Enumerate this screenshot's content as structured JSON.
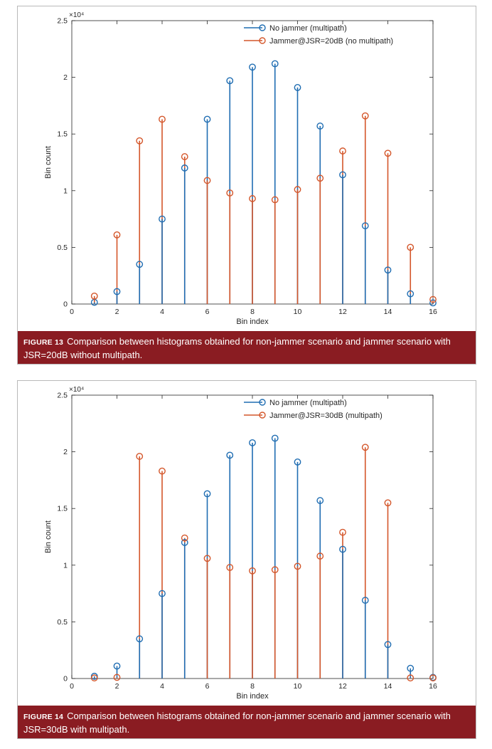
{
  "figures": [
    {
      "caption": {
        "label": "FIGURE 13",
        "text": "Comparison between histograms obtained for non-jammer scenario and jammer scenario with JSR=20dB without multipath."
      },
      "chart_data": {
        "type": "stem",
        "xlabel": "Bin index",
        "ylabel": "Bin count",
        "exponent_label": "×10⁴",
        "xlim": [
          0,
          16
        ],
        "ylim": [
          0,
          25000
        ],
        "x_ticks": [
          0,
          2,
          4,
          6,
          8,
          10,
          12,
          14,
          16
        ],
        "y_ticks": [
          0,
          5000,
          10000,
          15000,
          20000,
          25000
        ],
        "y_tick_labels": [
          "0",
          "0.5",
          "1",
          "1.5",
          "2",
          "2.5"
        ],
        "legend_position": "top-right",
        "x": [
          1,
          2,
          3,
          4,
          5,
          6,
          7,
          8,
          9,
          10,
          11,
          12,
          13,
          14,
          15,
          16
        ],
        "series": [
          {
            "name": "No jammer (multipath)",
            "color": "#1f6db2",
            "values": [
              150,
              1100,
              3500,
              7500,
              12000,
              16300,
              19700,
              20900,
              21200,
              19100,
              15700,
              11400,
              6900,
              3000,
              900,
              100
            ]
          },
          {
            "name": "Jammer@JSR=20dB (no multipath)",
            "color": "#d4562a",
            "values": [
              700,
              6100,
              14400,
              16300,
              13000,
              10900,
              9800,
              9300,
              9200,
              10100,
              11100,
              13500,
              16600,
              13300,
              5000,
              400
            ]
          }
        ]
      }
    },
    {
      "caption": {
        "label": "FIGURE 14",
        "text": "Comparison between histograms obtained for non-jammer scenario and jammer scenario with JSR=30dB with multipath."
      },
      "chart_data": {
        "type": "stem",
        "xlabel": "Bin index",
        "ylabel": "Bin count",
        "exponent_label": "×10⁴",
        "xlim": [
          0,
          16
        ],
        "ylim": [
          0,
          25000
        ],
        "x_ticks": [
          0,
          2,
          4,
          6,
          8,
          10,
          12,
          14,
          16
        ],
        "y_ticks": [
          0,
          5000,
          10000,
          15000,
          20000,
          25000
        ],
        "y_tick_labels": [
          "0",
          "0.5",
          "1",
          "1.5",
          "2",
          "2.5"
        ],
        "legend_position": "top-right",
        "x": [
          1,
          2,
          3,
          4,
          5,
          6,
          7,
          8,
          9,
          10,
          11,
          12,
          13,
          14,
          15,
          16
        ],
        "series": [
          {
            "name": "No jammer (multipath)",
            "color": "#1f6db2",
            "values": [
              200,
              1100,
              3500,
              7500,
              12000,
              16300,
              19700,
              20800,
              21200,
              19100,
              15700,
              11400,
              6900,
              3000,
              900,
              100
            ]
          },
          {
            "name": "Jammer@JSR=30dB (multipath)",
            "color": "#d4562a",
            "values": [
              50,
              100,
              19600,
              18300,
              12400,
              10600,
              9800,
              9500,
              9600,
              9900,
              10800,
              12900,
              20400,
              15500,
              50,
              50
            ]
          }
        ]
      }
    }
  ]
}
